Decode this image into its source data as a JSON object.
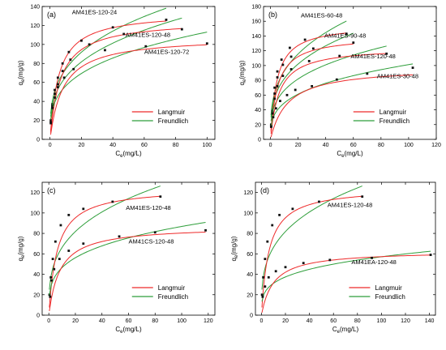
{
  "legend": {
    "langmuir": "Langmuir",
    "freundlich": "Freundlich"
  },
  "colors": {
    "langmuir": "#ee2a2a",
    "freundlich": "#2e9e3a",
    "marker": "#111111"
  },
  "chart_data": [
    {
      "type": "scatter",
      "panel": "(a)",
      "xlabel_main": "C",
      "xlabel_sub": "e",
      "xlabel_unit": "(mg/L)",
      "ylabel_main": "q",
      "ylabel_sub": "e",
      "ylabel_unit": "(mg/g)",
      "xlim": [
        -5,
        105
      ],
      "ylim": [
        0,
        140
      ],
      "xticks": [
        "0",
        "20",
        "40",
        "60",
        "80",
        "100"
      ],
      "yticks": [
        "0",
        "20",
        "40",
        "60",
        "80",
        "100",
        "120",
        "140"
      ],
      "legend_position": "bottom-right",
      "series": [
        {
          "name": "AM41ES-120-24",
          "label_x": 14,
          "label_y": 132,
          "points": [
            [
              0.5,
              20
            ],
            [
              1.5,
              37
            ],
            [
              3,
              52
            ],
            [
              5,
              65
            ],
            [
              8,
              80
            ],
            [
              12,
              92
            ],
            [
              20,
              104
            ],
            [
              40,
              118
            ],
            [
              74,
              126
            ]
          ],
          "qm": 134,
          "KL": 0.18,
          "KF": 36,
          "n": 3.2
        },
        {
          "name": "AM41ES-120-48",
          "label_x": 48,
          "label_y": 108,
          "points": [
            [
              0.5,
              18
            ],
            [
              1.5,
              35
            ],
            [
              3,
              48
            ],
            [
              5,
              58
            ],
            [
              8,
              72
            ],
            [
              13,
              84
            ],
            [
              25,
              100
            ],
            [
              47,
              111
            ],
            [
              84,
              116
            ]
          ],
          "qm": 126,
          "KL": 0.15,
          "KF": 32,
          "n": 3.2
        },
        {
          "name": "AM41ES-120-72",
          "label_x": 60,
          "label_y": 90,
          "points": [
            [
              0.5,
              17
            ],
            [
              1.5,
              33
            ],
            [
              3,
              44
            ],
            [
              5,
              55
            ],
            [
              9,
              65
            ],
            [
              15,
              74
            ],
            [
              35,
              94
            ],
            [
              61,
              98
            ],
            [
              100,
              101
            ]
          ],
          "qm": 108,
          "KL": 0.12,
          "KF": 28,
          "n": 3.3
        }
      ]
    },
    {
      "type": "scatter",
      "panel": "(b)",
      "xlabel_main": "C",
      "xlabel_sub": "e",
      "xlabel_unit": "(mg/L)",
      "ylabel_main": "q",
      "ylabel_sub": "e",
      "ylabel_unit": "(mg/g)",
      "xlim": [
        -5,
        120
      ],
      "ylim": [
        0,
        180
      ],
      "xticks": [
        "0",
        "20",
        "40",
        "60",
        "80",
        "100",
        "120"
      ],
      "yticks": [
        "0",
        "20",
        "40",
        "60",
        "80",
        "100",
        "120",
        "140",
        "160",
        "180"
      ],
      "legend_position": "bottom-right",
      "series": [
        {
          "name": "AM41ES-60-48",
          "label_x": 22,
          "label_y": 165,
          "points": [
            [
              0.5,
              20
            ],
            [
              1.5,
              40
            ],
            [
              3,
              70
            ],
            [
              5,
              92
            ],
            [
              8,
              108
            ],
            [
              14,
              124
            ],
            [
              25,
              135
            ],
            [
              55,
              143
            ]
          ],
          "qm": 156,
          "KL": 0.22,
          "KF": 44,
          "n": 3.1
        },
        {
          "name": "AM41ES-90-48",
          "label_x": 39,
          "label_y": 138,
          "points": [
            [
              0.5,
              19
            ],
            [
              1.5,
              38
            ],
            [
              3,
              62
            ],
            [
              5,
              84
            ],
            [
              9,
              101
            ],
            [
              15,
              112
            ],
            [
              31,
              123
            ],
            [
              60,
              131
            ]
          ],
          "qm": 140,
          "KL": 0.2,
          "KF": 40,
          "n": 3.2
        },
        {
          "name": "AM41ES-120-48",
          "label_x": 58,
          "label_y": 110,
          "points": [
            [
              0.5,
              18
            ],
            [
              1.5,
              35
            ],
            [
              3,
              55
            ],
            [
              5,
              72
            ],
            [
              9,
              86
            ],
            [
              15,
              95
            ],
            [
              28,
              106
            ],
            [
              50,
              113
            ],
            [
              84,
              116
            ]
          ],
          "qm": 125,
          "KL": 0.16,
          "KF": 33,
          "n": 3.3
        },
        {
          "name": "AM41ES-30-48",
          "label_x": 77,
          "label_y": 83,
          "points": [
            [
              0.5,
              17
            ],
            [
              2,
              30
            ],
            [
              4,
              42
            ],
            [
              7,
              52
            ],
            [
              12,
              60
            ],
            [
              18,
              67
            ],
            [
              30,
              72
            ],
            [
              48,
              81
            ],
            [
              70,
              89
            ],
            [
              103,
              97
            ]
          ],
          "qm": 98,
          "KL": 0.08,
          "KF": 24,
          "n": 3.2
        }
      ]
    },
    {
      "type": "scatter",
      "panel": "(c)",
      "xlabel_main": "C",
      "xlabel_sub": "e",
      "xlabel_unit": "(mg/L)",
      "ylabel_main": "q",
      "ylabel_sub": "e",
      "ylabel_unit": "(mg/g)",
      "xlim": [
        -5,
        125
      ],
      "ylim": [
        0,
        130
      ],
      "xticks": [
        "0",
        "20",
        "40",
        "60",
        "80",
        "100",
        "120"
      ],
      "yticks": [
        "0",
        "20",
        "40",
        "60",
        "80",
        "100",
        "120"
      ],
      "legend_position": "bottom-right",
      "series": [
        {
          "name": "AM41ES-120-48",
          "label_x": 58,
          "label_y": 103,
          "points": [
            [
              0.5,
              20
            ],
            [
              1.5,
              37
            ],
            [
              3,
              55
            ],
            [
              5,
              72
            ],
            [
              9,
              88
            ],
            [
              15,
              98
            ],
            [
              26,
              104
            ],
            [
              48,
              111
            ],
            [
              84,
              116
            ]
          ],
          "qm": 125,
          "KL": 0.16,
          "KF": 33,
          "n": 3.3
        },
        {
          "name": "AM41CS-120-48",
          "label_x": 60,
          "label_y": 70,
          "points": [
            [
              1,
              18
            ],
            [
              2,
              34
            ],
            [
              4,
              45
            ],
            [
              8,
              55
            ],
            [
              15,
              63
            ],
            [
              26,
              70
            ],
            [
              53,
              77
            ],
            [
              80,
              81
            ],
            [
              118,
              83
            ]
          ],
          "qm": 87,
          "KL": 0.12,
          "KF": 25,
          "n": 3.7
        }
      ]
    },
    {
      "type": "scatter",
      "panel": "(d)",
      "xlabel_main": "C",
      "xlabel_sub": "e",
      "xlabel_unit": "(mg/L)",
      "ylabel_main": "q",
      "ylabel_sub": "e",
      "ylabel_unit": "(mg/g)",
      "xlim": [
        -5,
        145
      ],
      "ylim": [
        0,
        130
      ],
      "xticks": [
        "0",
        "20",
        "40",
        "60",
        "80",
        "100",
        "120",
        "140"
      ],
      "yticks": [
        "0",
        "20",
        "40",
        "60",
        "80",
        "100",
        "120"
      ],
      "legend_position": "bottom-right",
      "series": [
        {
          "name": "AM41ES-120-48",
          "label_x": 55,
          "label_y": 106,
          "points": [
            [
              0.5,
              20
            ],
            [
              1.5,
              37
            ],
            [
              3,
              55
            ],
            [
              5,
              72
            ],
            [
              9,
              88
            ],
            [
              15,
              98
            ],
            [
              26,
              104
            ],
            [
              48,
              111
            ],
            [
              84,
              116
            ]
          ],
          "qm": 125,
          "KL": 0.16,
          "KF": 33,
          "n": 3.3
        },
        {
          "name": "AM41EA-120-48",
          "label_x": 75,
          "label_y": 50,
          "points": [
            [
              1,
              18
            ],
            [
              3,
              28
            ],
            [
              6,
              37
            ],
            [
              12,
              43
            ],
            [
              20,
              47
            ],
            [
              35,
              51
            ],
            [
              57,
              54
            ],
            [
              92,
              56
            ],
            [
              141,
              59
            ]
          ],
          "qm": 63,
          "KL": 0.1,
          "KF": 17,
          "n": 3.8
        }
      ]
    }
  ]
}
